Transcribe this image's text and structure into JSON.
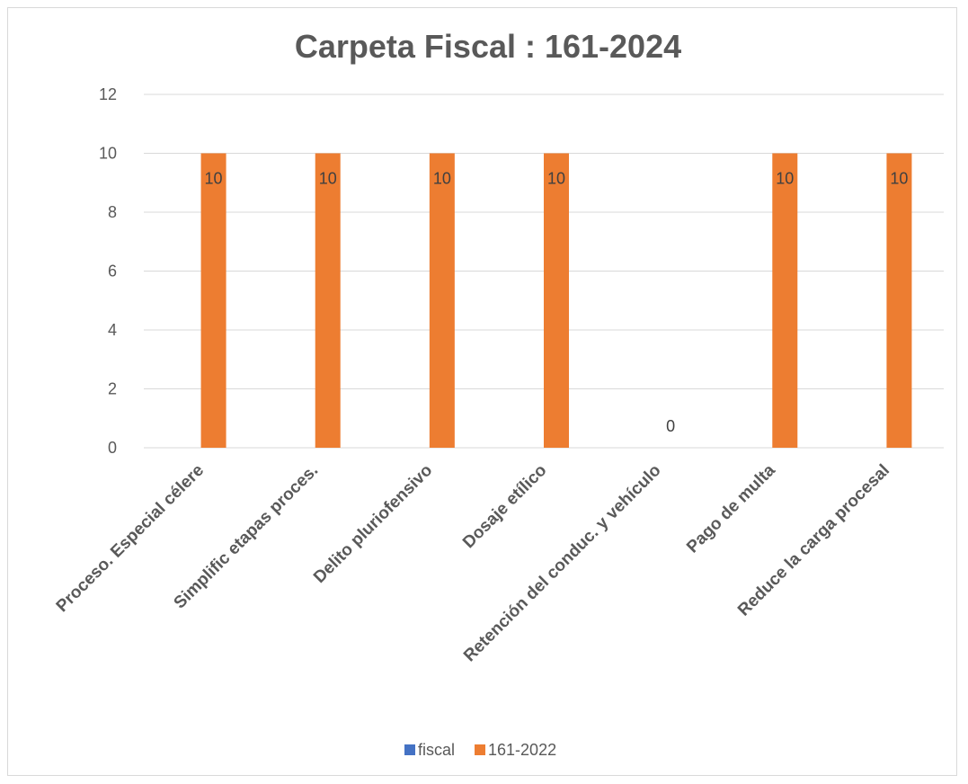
{
  "chart_data": {
    "type": "bar",
    "title": "Carpeta Fiscal : 161-2024",
    "xlabel": "",
    "ylabel": "",
    "ylim": [
      0,
      12
    ],
    "yticks": [
      0,
      2,
      4,
      6,
      8,
      10,
      12
    ],
    "grid": true,
    "legend_position": "bottom",
    "categories": [
      "Proceso. Especial célere",
      "Simplific etapas proces.",
      "Delito pluriofensivo",
      "Dosaje etílico",
      "Retención del conduc. y vehículo",
      "Pago de multa",
      "Reduce la carga procesal"
    ],
    "series": [
      {
        "name": "fiscal",
        "color": "#4472c4",
        "values": [
          0,
          0,
          0,
          0,
          0,
          0,
          0
        ],
        "show_labels": false
      },
      {
        "name": "161-2022",
        "color": "#ed7d31",
        "values": [
          10,
          10,
          10,
          10,
          0,
          10,
          10
        ],
        "show_labels": true
      }
    ]
  }
}
